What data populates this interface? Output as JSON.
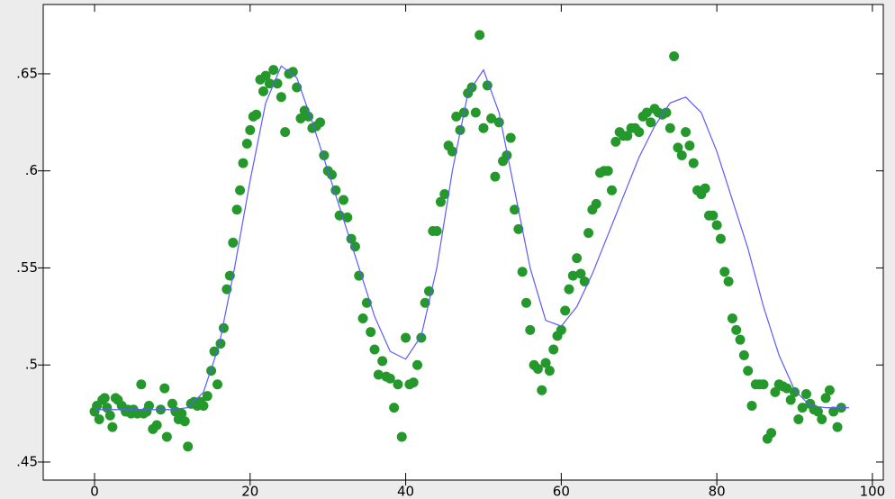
{
  "chart_data": {
    "type": "scatter",
    "xlim": [
      -6.6,
      101.4
    ],
    "ylim": [
      0.4407,
      0.6857
    ],
    "xticks": [
      0,
      20,
      40,
      60,
      80,
      100
    ],
    "yticks": [
      {
        "value": 0.45,
        "label": ".45"
      },
      {
        "value": 0.5,
        "label": ".5"
      },
      {
        "value": 0.55,
        "label": ".55"
      },
      {
        "value": 0.6,
        "label": ".6"
      },
      {
        "value": 0.65,
        "label": ".65"
      }
    ],
    "series": [
      {
        "type": "scatter",
        "color": "#25982c",
        "x": [
          0,
          0.3,
          0.6,
          1,
          1.3,
          1.6,
          2,
          2.3,
          2.7,
          3,
          3.5,
          4,
          4.3,
          4.7,
          5,
          5.5,
          6,
          6.3,
          6.7,
          7,
          7.5,
          8,
          8.5,
          9,
          9.3,
          10,
          10.4,
          10.8,
          11.2,
          11.6,
          12,
          12.4,
          12.8,
          13.2,
          13.6,
          14,
          14.5,
          15,
          15.4,
          15.8,
          16.2,
          16.6,
          17,
          17.4,
          17.8,
          18.3,
          18.7,
          19.1,
          19.6,
          20,
          20.4,
          20.8,
          21.3,
          21.7,
          22,
          22.5,
          23,
          23.5,
          24,
          24.5,
          25,
          25.5,
          26,
          26.5,
          27,
          27.5,
          28,
          28.5,
          29,
          29.5,
          30,
          30.5,
          31,
          31.5,
          32,
          32.5,
          33,
          33.5,
          34,
          34.5,
          35,
          35.5,
          36,
          36.5,
          37,
          37.5,
          38,
          38.5,
          39,
          39.5,
          40,
          40.5,
          41,
          41.5,
          42,
          42.5,
          43,
          43.5,
          44,
          44.5,
          45,
          45.5,
          46,
          46.5,
          47,
          47.5,
          48,
          48.5,
          49,
          49.5,
          50,
          50.5,
          51,
          51.5,
          52,
          52.5,
          53,
          53.5,
          54,
          54.5,
          55,
          55.5,
          56,
          56.5,
          57,
          57.5,
          58,
          58.5,
          59,
          59.5,
          60,
          60.5,
          61,
          61.5,
          62,
          62.5,
          63,
          63.5,
          64,
          64.5,
          65,
          65.5,
          66,
          66.5,
          67,
          67.5,
          68,
          68.5,
          69,
          69.5,
          70,
          70.5,
          71,
          71.5,
          72,
          72.5,
          73,
          73.5,
          74,
          74.5,
          75,
          75.5,
          76,
          76.5,
          77,
          77.5,
          78,
          78.5,
          79,
          79.5,
          80,
          80.5,
          81,
          81.5,
          82,
          82.5,
          83,
          83.5,
          84,
          84.5,
          85,
          85.5,
          86,
          86.5,
          87,
          87.5,
          88,
          88.5,
          89,
          89.5,
          90,
          90.5,
          91,
          91.5,
          92,
          92.5,
          93,
          93.5,
          94,
          94.5,
          95,
          95.5,
          96
        ],
        "values": [
          0.476,
          0.479,
          0.472,
          0.482,
          0.483,
          0.478,
          0.474,
          0.468,
          0.483,
          0.482,
          0.479,
          0.476,
          0.477,
          0.475,
          0.477,
          0.475,
          0.49,
          0.475,
          0.476,
          0.479,
          0.467,
          0.469,
          0.477,
          0.488,
          0.463,
          0.48,
          0.476,
          0.472,
          0.475,
          0.471,
          0.458,
          0.48,
          0.481,
          0.479,
          0.481,
          0.479,
          0.484,
          0.497,
          0.507,
          0.49,
          0.511,
          0.519,
          0.539,
          0.546,
          0.563,
          0.58,
          0.59,
          0.604,
          0.614,
          0.621,
          0.628,
          0.629,
          0.647,
          0.641,
          0.649,
          0.645,
          0.652,
          0.645,
          0.638,
          0.62,
          0.65,
          0.651,
          0.643,
          0.627,
          0.631,
          0.628,
          0.622,
          0.623,
          0.625,
          0.608,
          0.6,
          0.598,
          0.59,
          0.577,
          0.585,
          0.576,
          0.565,
          0.561,
          0.546,
          0.524,
          0.532,
          0.517,
          0.508,
          0.495,
          0.502,
          0.494,
          0.493,
          0.478,
          0.49,
          0.463,
          0.514,
          0.49,
          0.491,
          0.5,
          0.514,
          0.532,
          0.538,
          0.569,
          0.569,
          0.584,
          0.588,
          0.613,
          0.61,
          0.628,
          0.621,
          0.63,
          0.64,
          0.643,
          0.63,
          0.67,
          0.622,
          0.644,
          0.627,
          0.597,
          0.625,
          0.605,
          0.608,
          0.617,
          0.58,
          0.57,
          0.548,
          0.532,
          0.518,
          0.5,
          0.498,
          0.487,
          0.501,
          0.497,
          0.508,
          0.515,
          0.518,
          0.528,
          0.539,
          0.546,
          0.555,
          0.547,
          0.543,
          0.568,
          0.58,
          0.583,
          0.599,
          0.6,
          0.6,
          0.59,
          0.615,
          0.62,
          0.618,
          0.618,
          0.622,
          0.622,
          0.62,
          0.628,
          0.63,
          0.625,
          0.632,
          0.63,
          0.629,
          0.63,
          0.622,
          0.659,
          0.612,
          0.608,
          0.62,
          0.613,
          0.604,
          0.59,
          0.588,
          0.591,
          0.577,
          0.577,
          0.572,
          0.565,
          0.548,
          0.543,
          0.524,
          0.518,
          0.513,
          0.505,
          0.497,
          0.479,
          0.49,
          0.49,
          0.49,
          0.462,
          0.465,
          0.486,
          0.49,
          0.489,
          0.488,
          0.482,
          0.486,
          0.472,
          0.478,
          0.485,
          0.48,
          0.477,
          0.476,
          0.472,
          0.483,
          0.487,
          0.476,
          0.468,
          0.478
        ]
      },
      {
        "type": "line",
        "color": "#5a5aff",
        "x": [
          0,
          2,
          4,
          6,
          8,
          10,
          12,
          14,
          16,
          18,
          20,
          22,
          24,
          26,
          28,
          30,
          32,
          34,
          36,
          38,
          40,
          42,
          44,
          46,
          48,
          50,
          52,
          54,
          56,
          58,
          60,
          62,
          64,
          66,
          68,
          70,
          72,
          74,
          76,
          78,
          80,
          82,
          84,
          86,
          88,
          90,
          92,
          94,
          96,
          97
        ],
        "values": [
          0.477,
          0.477,
          0.477,
          0.477,
          0.477,
          0.477,
          0.478,
          0.486,
          0.51,
          0.55,
          0.595,
          0.635,
          0.654,
          0.648,
          0.625,
          0.6,
          0.575,
          0.55,
          0.525,
          0.507,
          0.503,
          0.515,
          0.55,
          0.6,
          0.64,
          0.652,
          0.63,
          0.59,
          0.55,
          0.523,
          0.52,
          0.53,
          0.547,
          0.567,
          0.587,
          0.607,
          0.623,
          0.635,
          0.638,
          0.63,
          0.61,
          0.585,
          0.56,
          0.53,
          0.505,
          0.487,
          0.479,
          0.478,
          0.478,
          0.478
        ]
      }
    ]
  }
}
